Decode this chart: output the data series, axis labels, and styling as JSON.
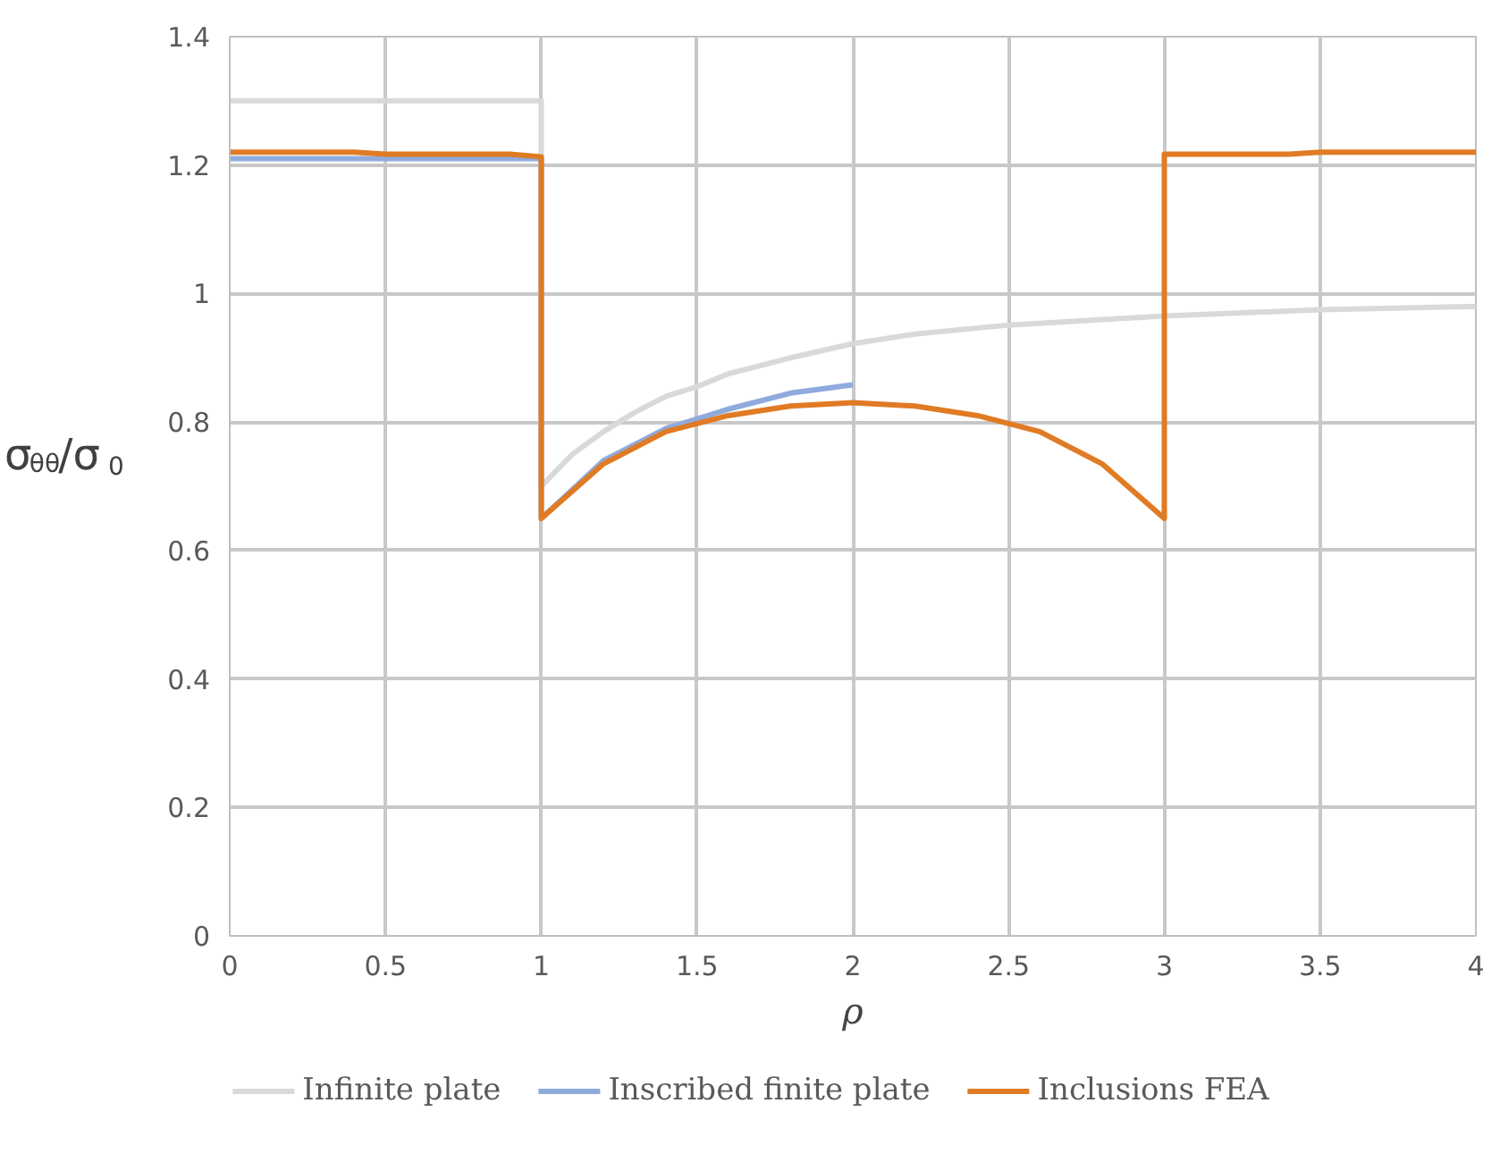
{
  "chart_data": {
    "type": "line",
    "xlabel": "ρ",
    "ylabel": "σ$_{θθ}$/σ$_{0}$",
    "xlim": [
      0,
      4
    ],
    "ylim": [
      0,
      1.4
    ],
    "xticks": [
      0,
      0.5,
      1,
      1.5,
      2,
      2.5,
      3,
      3.5,
      4
    ],
    "yticks": [
      0,
      0.2,
      0.4,
      0.6,
      0.8,
      1,
      1.2,
      1.4
    ],
    "grid": true,
    "legend": "bottom",
    "marker": "none",
    "line_style": "solid",
    "series": [
      {
        "name": "Infinite plate",
        "color": "#d9d9d9",
        "x": [
          0,
          1,
          1,
          1.1,
          1.2,
          1.3,
          1.4,
          1.5,
          1.6,
          1.8,
          2.0,
          2.2,
          2.5,
          3.0,
          3.5,
          4.0
        ],
        "values": [
          1.3,
          1.3,
          0.7,
          0.75,
          0.785,
          0.815,
          0.84,
          0.855,
          0.875,
          0.9,
          0.922,
          0.937,
          0.951,
          0.965,
          0.975,
          0.98
        ]
      },
      {
        "name": "Inscribed finite plate",
        "color": "#8faadc",
        "x": [
          0,
          1,
          1,
          1.1,
          1.2,
          1.4,
          1.6,
          1.8,
          2.0
        ],
        "values": [
          1.21,
          1.21,
          0.65,
          0.695,
          0.74,
          0.79,
          0.82,
          0.845,
          0.858
        ]
      },
      {
        "name": "Inclusions FEA",
        "color": "#e07b24",
        "x": [
          0,
          0.4,
          0.5,
          0.9,
          1.0,
          1.0,
          1.2,
          1.4,
          1.6,
          1.8,
          2.0,
          2.2,
          2.4,
          2.6,
          2.8,
          3.0,
          3.0,
          3.4,
          3.5,
          4.0
        ],
        "values": [
          1.22,
          1.22,
          1.217,
          1.217,
          1.213,
          0.65,
          0.735,
          0.785,
          0.81,
          0.825,
          0.83,
          0.825,
          0.81,
          0.785,
          0.735,
          0.65,
          1.217,
          1.217,
          1.22,
          1.22
        ]
      }
    ]
  }
}
